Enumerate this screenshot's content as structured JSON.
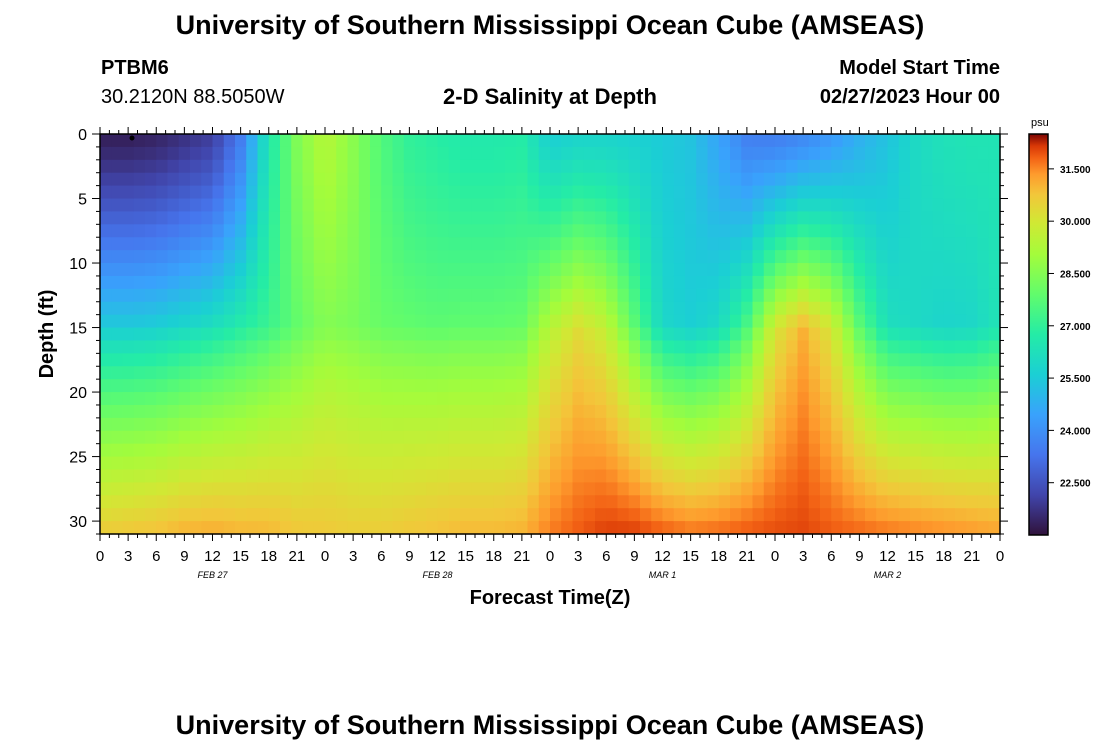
{
  "header": {
    "title": "University of Southern Mississippi Ocean Cube (AMSEAS)",
    "station_id": "PTBM6",
    "station_coords": "30.2120N  88.5050W",
    "plot_name": "2-D Salinity at Depth",
    "model_start_label": "Model Start Time",
    "model_start_value": "02/27/2023 Hour 00"
  },
  "footer": {
    "title": "University of Southern Mississippi Ocean Cube (AMSEAS)"
  },
  "chart_data": {
    "type": "heatmap",
    "title": "2-D Salinity at Depth",
    "xlabel": "Forecast Time(Z)",
    "ylabel": "Depth (ft)",
    "x_range_hours": [
      0,
      96
    ],
    "y_range_ft": [
      0,
      31
    ],
    "x_tick_labels": [
      "0",
      "3",
      "6",
      "9",
      "12",
      "15",
      "18",
      "21",
      "0",
      "3",
      "6",
      "9",
      "12",
      "15",
      "18",
      "21",
      "0",
      "3",
      "6",
      "9",
      "12",
      "15",
      "18",
      "21",
      "0",
      "3",
      "6",
      "9",
      "12",
      "15",
      "18",
      "21",
      "0"
    ],
    "y_tick_labels": [
      "0",
      "5",
      "10",
      "15",
      "20",
      "25",
      "30"
    ],
    "y_tick_values": [
      0,
      5,
      10,
      15,
      20,
      25,
      30
    ],
    "date_labels": [
      {
        "label": "FEB 27",
        "hour": 12
      },
      {
        "label": "FEB 28",
        "hour": 36
      },
      {
        "label": "MAR 1",
        "hour": 60
      },
      {
        "label": "MAR 2",
        "hour": 84
      }
    ],
    "colorbar": {
      "unit": "psu",
      "min": 21.0,
      "max": 32.5,
      "tick_labels": [
        "31.500",
        "30.000",
        "28.500",
        "27.000",
        "25.500",
        "24.000",
        "22.500"
      ],
      "tick_values": [
        31.5,
        30.0,
        28.5,
        27.0,
        25.5,
        24.0,
        22.5
      ]
    },
    "time_hours": [
      0,
      3,
      6,
      9,
      12,
      15,
      18,
      21,
      24,
      27,
      30,
      33,
      36,
      39,
      42,
      45,
      48,
      51,
      54,
      57,
      60,
      63,
      66,
      69,
      72,
      75,
      78,
      81,
      84,
      87,
      90,
      93,
      96
    ],
    "series": [
      {
        "name": "surface_salinity_0ft",
        "values": [
          21.3,
          21.3,
          21.4,
          21.7,
          22.0,
          23.5,
          26.5,
          28.4,
          29.4,
          28.6,
          27.6,
          27.0,
          26.8,
          26.6,
          26.6,
          26.7,
          25.6,
          25.8,
          25.8,
          25.7,
          25.5,
          25.3,
          24.5,
          23.6,
          23.5,
          23.8,
          24.2,
          24.8,
          25.3,
          26.0,
          26.3,
          26.4,
          26.4
        ]
      },
      {
        "name": "mid_salinity_15ft",
        "values": [
          25.5,
          25.5,
          25.6,
          25.9,
          26.2,
          26.7,
          27.2,
          27.9,
          28.5,
          28.3,
          28.0,
          27.9,
          27.8,
          27.9,
          27.9,
          28.0,
          29.4,
          30.2,
          29.6,
          27.8,
          25.9,
          25.6,
          26.0,
          27.5,
          30.0,
          31.0,
          30.0,
          27.8,
          26.2,
          26.0,
          25.8,
          25.9,
          26.4
        ]
      },
      {
        "name": "bottom_salinity_30ft",
        "values": [
          30.4,
          30.5,
          30.6,
          30.8,
          30.9,
          30.8,
          30.8,
          30.6,
          30.6,
          30.5,
          30.5,
          30.6,
          30.7,
          30.8,
          30.8,
          30.9,
          31.5,
          31.8,
          32.0,
          31.9,
          31.6,
          31.4,
          31.5,
          31.7,
          31.9,
          32.0,
          31.8,
          31.6,
          31.4,
          31.3,
          31.2,
          31.1,
          31.0
        ]
      }
    ]
  }
}
